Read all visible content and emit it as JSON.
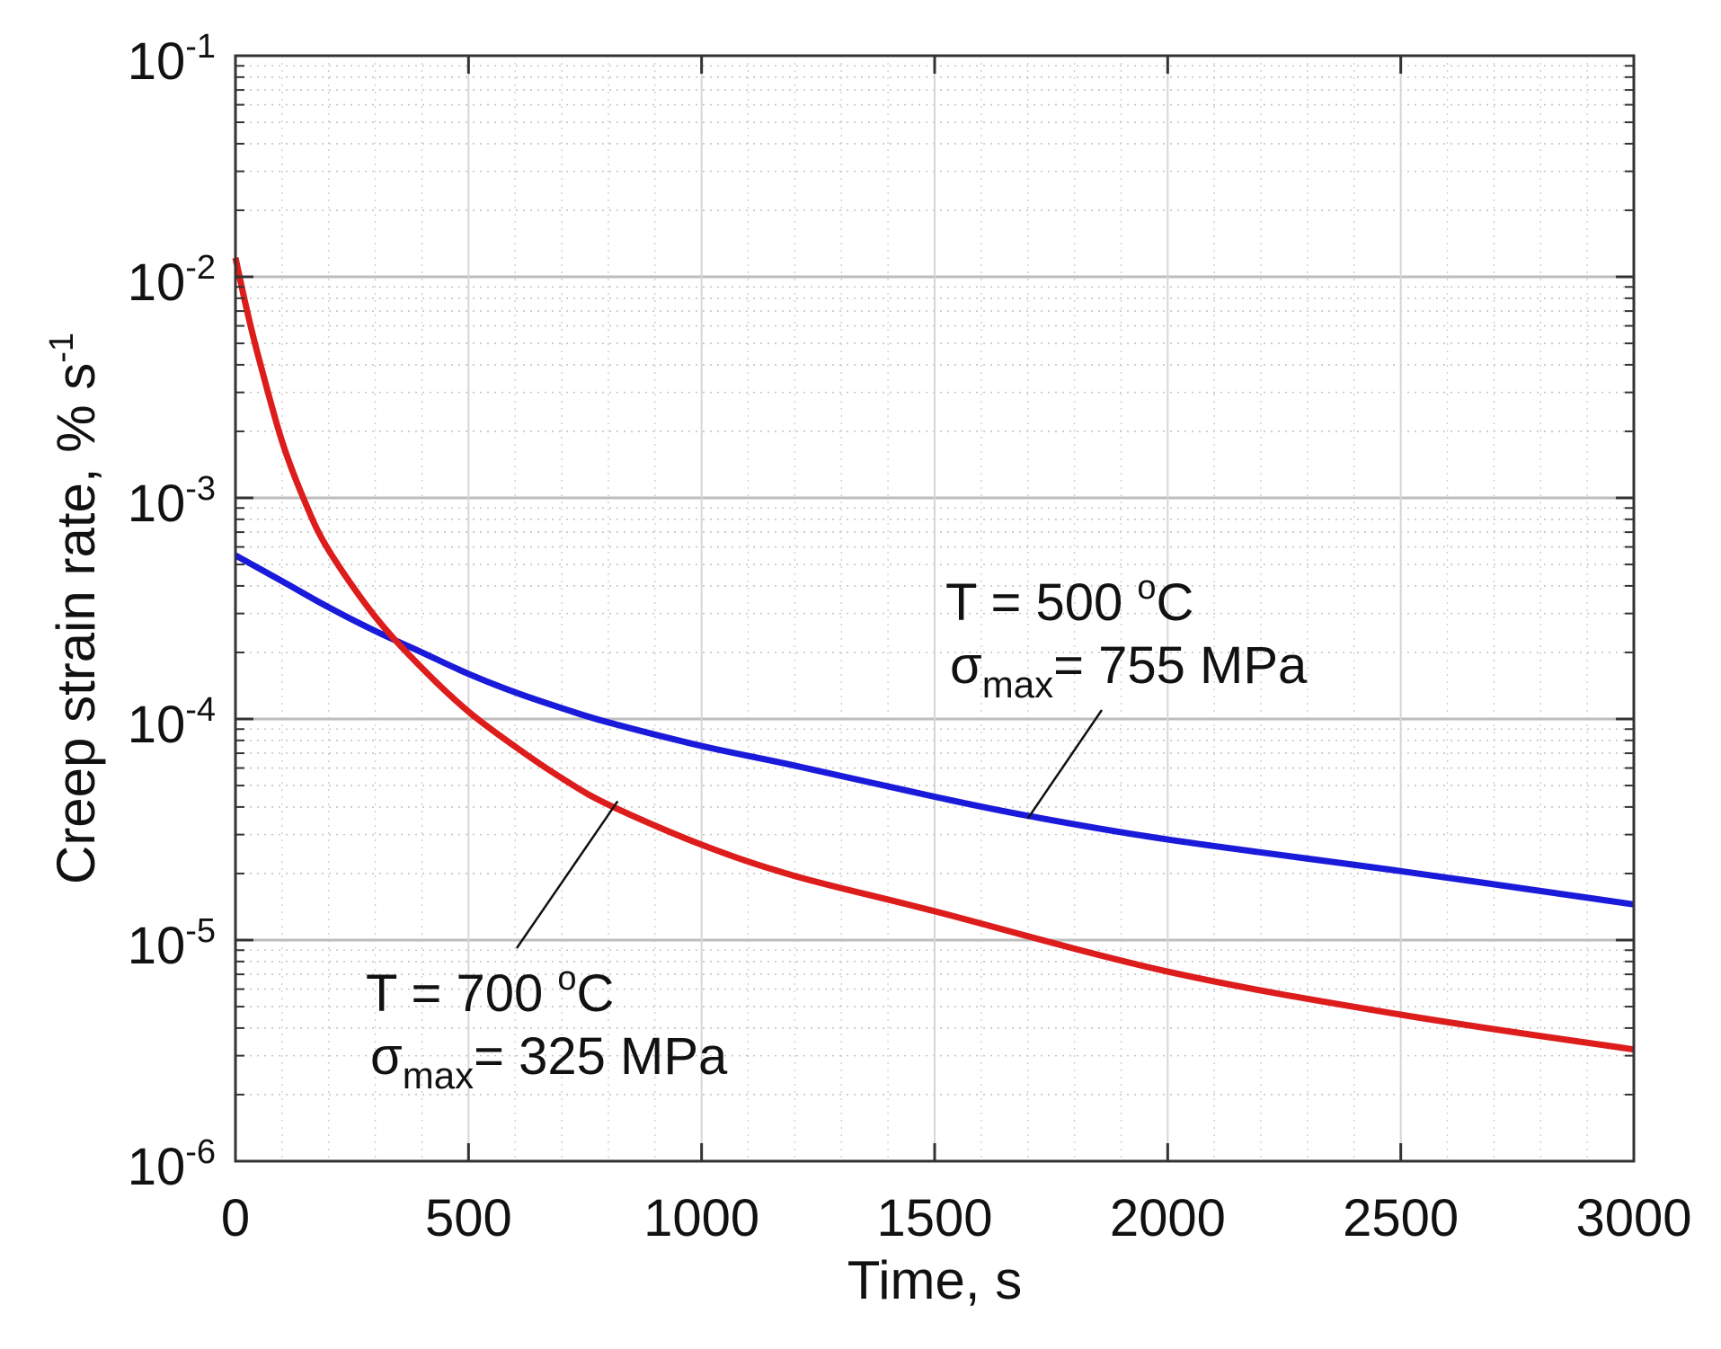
{
  "chart_data": {
    "type": "line",
    "title": "",
    "xlabel": "Time, s",
    "ylabel": {
      "main": "Creep strain rate,  % s",
      "exp": "-1"
    },
    "xlim": [
      0,
      3000
    ],
    "ylim_log10": [
      -6,
      -1
    ],
    "yscale": "log",
    "grid": true,
    "x_ticks": [
      0,
      500,
      1000,
      1500,
      2000,
      2500,
      3000
    ],
    "x_tick_labels": [
      "0",
      "500",
      "1000",
      "1500",
      "2000",
      "2500",
      "3000"
    ],
    "y_ticks": [
      -6,
      -5,
      -4,
      -3,
      -2,
      -1
    ],
    "y_tick_labels": [
      {
        "base": "10",
        "exp": "-6"
      },
      {
        "base": "10",
        "exp": "-5"
      },
      {
        "base": "10",
        "exp": "-4"
      },
      {
        "base": "10",
        "exp": "-3"
      },
      {
        "base": "10",
        "exp": "-2"
      },
      {
        "base": "10",
        "exp": "-1"
      }
    ],
    "series": [
      {
        "name": "T = 500 oC, σmax = 755 MPa",
        "color": "#1a1adb",
        "x": [
          0,
          100,
          200,
          300,
          400,
          500,
          600,
          700,
          800,
          1000,
          1200,
          1500,
          1700,
          2000,
          2500,
          3000
        ],
        "y": [
          0.00055,
          0.00042,
          0.00032,
          0.00025,
          0.0002,
          0.00016,
          0.000132,
          0.000112,
          9.65e-05,
          7.55e-05,
          6.15e-05,
          4.45e-05,
          3.65e-05,
          2.85e-05,
          2.05e-05,
          1.45e-05
        ]
      },
      {
        "name": "T = 700 oC, σmax = 325 MPa",
        "color": "#dd1c1c",
        "x": [
          0,
          25,
          50,
          100,
          150,
          200,
          300,
          400,
          500,
          600,
          700,
          800,
          1000,
          1200,
          1500,
          2000,
          2500,
          3000
        ],
        "y": [
          0.0122,
          0.007,
          0.0043,
          0.0018,
          0.00095,
          0.00058,
          0.00029,
          0.00017,
          0.000108,
          7.5e-05,
          5.4e-05,
          4.1e-05,
          2.7e-05,
          1.95e-05,
          1.35e-05,
          7.2e-06,
          4.6e-06,
          3.2e-06
        ]
      }
    ],
    "annotations": [
      {
        "line1": {
          "pre": "T = 500 ",
          "sup": "o",
          "post": "C"
        },
        "line2": {
          "sym": "σ",
          "sub": "max",
          "post": "= 755 MPa"
        },
        "pointer_to": [
          1700,
          3.55e-05
        ],
        "text_anchor": [
          1550,
          0.00017
        ]
      },
      {
        "line1": {
          "pre": "T = 700 ",
          "sup": "o",
          "post": "C"
        },
        "line2": {
          "sym": "σ",
          "sub": "max",
          "post": "= 325 MPa"
        },
        "pointer_to": [
          820,
          4.25e-05
        ],
        "text_anchor": [
          600,
          8.2e-06
        ]
      }
    ]
  }
}
